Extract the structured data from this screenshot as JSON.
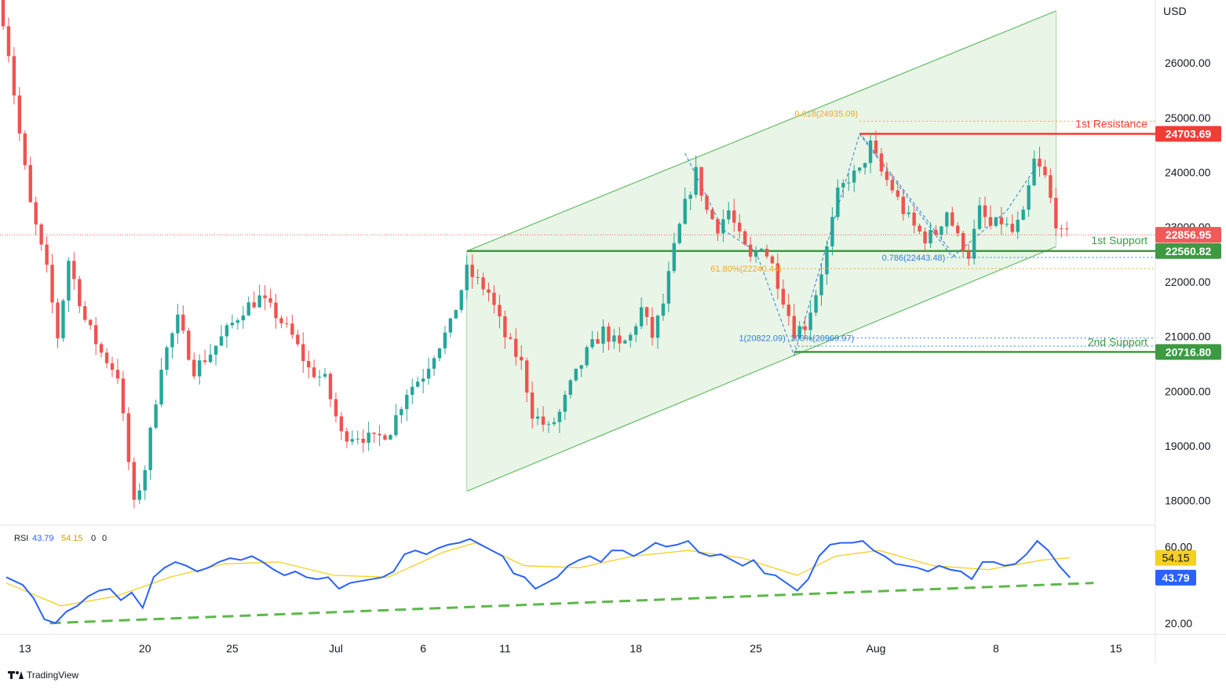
{
  "currency": "USD",
  "colors": {
    "up": "#26a69a",
    "down": "#ef5350",
    "channel_line": "#70c070",
    "channel_fill": "#e9f5e6",
    "support": "#3d9a43",
    "resistance": "#f23c36",
    "fib": "#f0a828",
    "pattern": "#2f7fd6",
    "rsi_line": "#2962ff",
    "rsi_ma": "#f5d020",
    "rsi_trend": "#5cb84a",
    "last_price": "#f05a5a"
  },
  "chart_data": {
    "type": "candlestick",
    "price_axis": {
      "ticks": [
        "18000.00",
        "19000.00",
        "20000.00",
        "21000.00",
        "22000.00",
        "23000.00",
        "24000.00",
        "25000.00",
        "26000.00"
      ],
      "ylim": [
        17550,
        27150
      ]
    },
    "time_axis": {
      "ticks": [
        "13",
        "20",
        "25",
        "Jul",
        "6",
        "11",
        "18",
        "25",
        "Aug",
        "8",
        "15"
      ]
    },
    "price_path": [
      [
        0,
        27400
      ],
      [
        2,
        26200
      ],
      [
        4,
        24700
      ],
      [
        6,
        23400
      ],
      [
        9,
        22200
      ],
      [
        11,
        21000
      ],
      [
        13,
        22400
      ],
      [
        16,
        21300
      ],
      [
        19,
        20700
      ],
      [
        22,
        20300
      ],
      [
        25,
        17900
      ],
      [
        27,
        18600
      ],
      [
        30,
        20500
      ],
      [
        33,
        21300
      ],
      [
        36,
        20400
      ],
      [
        39,
        20700
      ],
      [
        42,
        21100
      ],
      [
        45,
        21500
      ],
      [
        48,
        21700
      ],
      [
        51,
        21400
      ],
      [
        54,
        21000
      ],
      [
        57,
        20400
      ],
      [
        60,
        20200
      ],
      [
        63,
        19200
      ],
      [
        66,
        19200
      ],
      [
        69,
        19100
      ],
      [
        72,
        19300
      ],
      [
        75,
        20000
      ],
      [
        78,
        20300
      ],
      [
        80,
        20700
      ],
      [
        83,
        21200
      ],
      [
        86,
        22200
      ],
      [
        88,
        22000
      ],
      [
        90,
        21800
      ],
      [
        93,
        21000
      ],
      [
        96,
        20500
      ],
      [
        98,
        19600
      ],
      [
        101,
        19300
      ],
      [
        103,
        19600
      ],
      [
        105,
        20100
      ],
      [
        108,
        20700
      ],
      [
        111,
        21100
      ],
      [
        114,
        20800
      ],
      [
        116,
        21000
      ],
      [
        118,
        21500
      ],
      [
        120,
        21000
      ],
      [
        122,
        21600
      ],
      [
        124,
        22600
      ],
      [
        126,
        23400
      ],
      [
        128,
        24000
      ],
      [
        130,
        23300
      ],
      [
        132,
        23000
      ],
      [
        134,
        23300
      ],
      [
        136,
        22800
      ],
      [
        138,
        22400
      ],
      [
        140,
        22700
      ],
      [
        142,
        22300
      ],
      [
        144,
        21700
      ],
      [
        146,
        21100
      ],
      [
        148,
        21200
      ],
      [
        150,
        21800
      ],
      [
        152,
        22600
      ],
      [
        154,
        23600
      ],
      [
        156,
        23900
      ],
      [
        158,
        24000
      ],
      [
        160,
        24500
      ],
      [
        162,
        24000
      ],
      [
        164,
        23700
      ],
      [
        166,
        23300
      ],
      [
        168,
        23000
      ],
      [
        170,
        22800
      ],
      [
        172,
        22900
      ],
      [
        174,
        23300
      ],
      [
        176,
        22800
      ],
      [
        178,
        22500
      ],
      [
        180,
        23300
      ],
      [
        182,
        23000
      ],
      [
        184,
        23100
      ],
      [
        186,
        22900
      ],
      [
        188,
        23200
      ],
      [
        190,
        24200
      ],
      [
        192,
        23900
      ],
      [
        194,
        23100
      ],
      [
        195,
        22850
      ]
    ],
    "time_grid": {
      "x_start": 4,
      "slot_width": 6.95,
      "bars": 196
    },
    "annotations": {
      "resistance_1": {
        "label": "1st Resistance",
        "value": "24703.69",
        "price": 24703.69
      },
      "support_1": {
        "label": "1st Support",
        "value": "22560.82",
        "price": 22560.82
      },
      "support_2": {
        "label": "2nd Support",
        "value": "20716.80",
        "price": 20716.8
      },
      "last_price": {
        "value": "22856.95",
        "price": 22856.95
      },
      "fib_1": {
        "label": "0.618(24935.09)",
        "price": 24935.09
      },
      "fib_2": {
        "label": "61.80%(22240.44)",
        "price": 22240.44
      },
      "fib_3": {
        "label": "0.786(22443.48)",
        "price": 22443.48
      },
      "fib_4a": {
        "label": "1(20822.09)",
        "price": 20822.09
      },
      "fib_4b": {
        "label": "100%(20969.97)",
        "price": 20969.97
      }
    },
    "channel": {
      "upper": [
        [
          85,
          22560
        ],
        [
          193,
          26950
        ]
      ],
      "lower": [
        [
          85,
          18170
        ],
        [
          193,
          22640
        ]
      ]
    },
    "rsi": {
      "label": "RSI",
      "value": "43.79",
      "ma_value": "54.15",
      "extra": [
        "0",
        "0"
      ],
      "ticks": [
        "20.00",
        "60.00"
      ],
      "ylim": [
        15,
        70
      ],
      "trendline": [
        [
          8,
          20.0
        ],
        [
          195,
          41.0
        ]
      ],
      "points": [
        [
          0,
          44
        ],
        [
          3,
          40
        ],
        [
          5,
          33
        ],
        [
          7,
          22
        ],
        [
          9,
          20
        ],
        [
          11,
          26
        ],
        [
          13,
          29
        ],
        [
          15,
          34
        ],
        [
          17,
          37
        ],
        [
          19,
          38
        ],
        [
          21,
          32
        ],
        [
          23,
          36
        ],
        [
          25,
          28
        ],
        [
          27,
          44
        ],
        [
          29,
          49
        ],
        [
          31,
          52
        ],
        [
          33,
          50
        ],
        [
          35,
          47
        ],
        [
          37,
          49
        ],
        [
          39,
          52
        ],
        [
          41,
          54
        ],
        [
          43,
          53
        ],
        [
          45,
          55
        ],
        [
          47,
          52
        ],
        [
          49,
          48
        ],
        [
          51,
          45
        ],
        [
          53,
          47
        ],
        [
          55,
          44
        ],
        [
          57,
          43
        ],
        [
          59,
          44
        ],
        [
          61,
          38
        ],
        [
          63,
          41
        ],
        [
          65,
          42
        ],
        [
          67,
          43
        ],
        [
          69,
          44
        ],
        [
          71,
          47
        ],
        [
          73,
          56
        ],
        [
          75,
          58
        ],
        [
          77,
          56
        ],
        [
          79,
          59
        ],
        [
          81,
          61
        ],
        [
          83,
          62
        ],
        [
          85,
          64
        ],
        [
          87,
          61
        ],
        [
          89,
          58
        ],
        [
          91,
          55
        ],
        [
          93,
          46
        ],
        [
          95,
          44
        ],
        [
          97,
          38
        ],
        [
          99,
          41
        ],
        [
          101,
          44
        ],
        [
          103,
          50
        ],
        [
          105,
          53
        ],
        [
          107,
          55
        ],
        [
          109,
          52
        ],
        [
          111,
          58
        ],
        [
          113,
          58
        ],
        [
          115,
          55
        ],
        [
          117,
          58
        ],
        [
          119,
          62
        ],
        [
          121,
          60
        ],
        [
          123,
          61
        ],
        [
          125,
          63
        ],
        [
          127,
          57
        ],
        [
          129,
          55
        ],
        [
          131,
          56
        ],
        [
          133,
          53
        ],
        [
          135,
          50
        ],
        [
          137,
          53
        ],
        [
          139,
          46
        ],
        [
          141,
          45
        ],
        [
          143,
          41
        ],
        [
          145,
          37
        ],
        [
          147,
          43
        ],
        [
          149,
          55
        ],
        [
          151,
          61
        ],
        [
          153,
          62
        ],
        [
          155,
          62
        ],
        [
          157,
          63
        ],
        [
          159,
          58
        ],
        [
          161,
          55
        ],
        [
          163,
          51
        ],
        [
          165,
          50
        ],
        [
          167,
          49
        ],
        [
          169,
          47
        ],
        [
          171,
          50
        ],
        [
          173,
          48
        ],
        [
          175,
          47
        ],
        [
          177,
          43
        ],
        [
          179,
          52
        ],
        [
          181,
          52
        ],
        [
          183,
          50
        ],
        [
          185,
          51
        ],
        [
          187,
          56
        ],
        [
          189,
          63
        ],
        [
          191,
          58
        ],
        [
          193,
          50
        ],
        [
          195,
          43.79
        ]
      ],
      "ma_points": [
        [
          0,
          41
        ],
        [
          10,
          29
        ],
        [
          20,
          34
        ],
        [
          30,
          44
        ],
        [
          40,
          51
        ],
        [
          50,
          52
        ],
        [
          60,
          45
        ],
        [
          70,
          44
        ],
        [
          80,
          57
        ],
        [
          86,
          62
        ],
        [
          95,
          50
        ],
        [
          105,
          49
        ],
        [
          115,
          55
        ],
        [
          125,
          58
        ],
        [
          135,
          54
        ],
        [
          145,
          45
        ],
        [
          152,
          55
        ],
        [
          160,
          58
        ],
        [
          170,
          50
        ],
        [
          180,
          48
        ],
        [
          190,
          53
        ],
        [
          195,
          54.15
        ]
      ]
    }
  },
  "brand": {
    "name": "TradingView"
  }
}
